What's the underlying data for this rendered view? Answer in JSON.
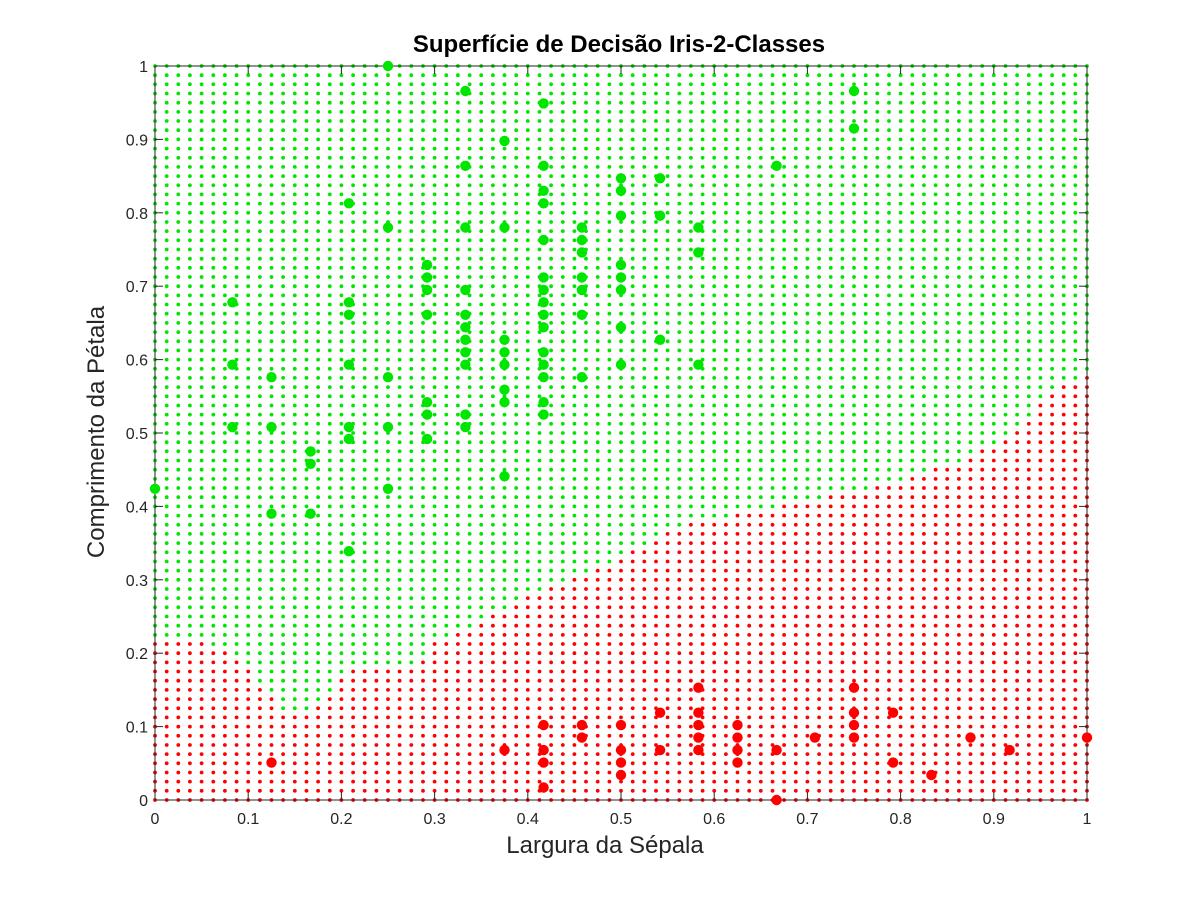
{
  "chart_data": {
    "type": "scatter",
    "title": "Superfície de Decisão Iris-2-Classes",
    "xlabel": "Largura da Sépala",
    "ylabel": "Comprimento da Pétala",
    "xlim": [
      0,
      1
    ],
    "ylim": [
      0,
      1
    ],
    "xticks": [
      "0",
      "0.1",
      "0.2",
      "0.3",
      "0.4",
      "0.5",
      "0.6",
      "0.7",
      "0.8",
      "0.9",
      "1"
    ],
    "yticks": [
      "0",
      "0.1",
      "0.2",
      "0.3",
      "0.4",
      "0.5",
      "0.6",
      "0.7",
      "0.8",
      "0.9",
      "1"
    ],
    "grid": false,
    "legend": "none",
    "colors": {
      "green_class": "#00e600",
      "red_class": "#ff0000"
    },
    "decision_surface": {
      "grid_step": 0.0125,
      "boundary": [
        [
          0.0,
          0.215
        ],
        [
          0.05,
          0.215
        ],
        [
          0.08,
          0.2
        ],
        [
          0.1,
          0.18
        ],
        [
          0.12,
          0.15
        ],
        [
          0.14,
          0.12
        ],
        [
          0.16,
          0.12
        ],
        [
          0.19,
          0.15
        ],
        [
          0.21,
          0.175
        ],
        [
          0.25,
          0.18
        ],
        [
          0.28,
          0.185
        ],
        [
          0.3,
          0.22
        ],
        [
          0.33,
          0.23
        ],
        [
          0.36,
          0.25
        ],
        [
          0.39,
          0.27
        ],
        [
          0.43,
          0.29
        ],
        [
          0.46,
          0.31
        ],
        [
          0.5,
          0.33
        ],
        [
          0.54,
          0.36
        ],
        [
          0.58,
          0.38
        ],
        [
          0.63,
          0.39
        ],
        [
          0.67,
          0.4
        ],
        [
          0.7,
          0.41
        ],
        [
          0.75,
          0.42
        ],
        [
          0.8,
          0.435
        ],
        [
          0.85,
          0.455
        ],
        [
          0.88,
          0.47
        ],
        [
          0.91,
          0.49
        ],
        [
          0.93,
          0.515
        ],
        [
          0.95,
          0.54
        ],
        [
          0.97,
          0.56
        ],
        [
          1.0,
          0.58
        ]
      ],
      "above": "green",
      "below": "red"
    },
    "series": [
      {
        "class": "green",
        "points": [
          [
            0.0,
            0.424
          ],
          [
            0.25,
            1.0
          ],
          [
            0.333,
            0.966
          ],
          [
            0.417,
            0.949
          ],
          [
            0.75,
            0.966
          ],
          [
            0.75,
            0.915
          ],
          [
            0.375,
            0.898
          ],
          [
            0.333,
            0.864
          ],
          [
            0.417,
            0.864
          ],
          [
            0.5,
            0.847
          ],
          [
            0.5,
            0.83
          ],
          [
            0.542,
            0.847
          ],
          [
            0.667,
            0.864
          ],
          [
            0.417,
            0.83
          ],
          [
            0.208,
            0.813
          ],
          [
            0.417,
            0.813
          ],
          [
            0.5,
            0.796
          ],
          [
            0.542,
            0.796
          ],
          [
            0.25,
            0.78
          ],
          [
            0.333,
            0.78
          ],
          [
            0.375,
            0.78
          ],
          [
            0.458,
            0.78
          ],
          [
            0.583,
            0.78
          ],
          [
            0.417,
            0.763
          ],
          [
            0.458,
            0.763
          ],
          [
            0.583,
            0.746
          ],
          [
            0.458,
            0.746
          ],
          [
            0.292,
            0.729
          ],
          [
            0.5,
            0.729
          ],
          [
            0.292,
            0.712
          ],
          [
            0.417,
            0.712
          ],
          [
            0.458,
            0.712
          ],
          [
            0.5,
            0.712
          ],
          [
            0.417,
            0.695
          ],
          [
            0.292,
            0.695
          ],
          [
            0.333,
            0.695
          ],
          [
            0.458,
            0.695
          ],
          [
            0.5,
            0.695
          ],
          [
            0.417,
            0.678
          ],
          [
            0.083,
            0.678
          ],
          [
            0.208,
            0.678
          ],
          [
            0.417,
            0.661
          ],
          [
            0.208,
            0.661
          ],
          [
            0.292,
            0.661
          ],
          [
            0.333,
            0.661
          ],
          [
            0.458,
            0.661
          ],
          [
            0.417,
            0.644
          ],
          [
            0.333,
            0.644
          ],
          [
            0.5,
            0.644
          ],
          [
            0.542,
            0.627
          ],
          [
            0.333,
            0.627
          ],
          [
            0.375,
            0.627
          ],
          [
            0.417,
            0.61
          ],
          [
            0.333,
            0.61
          ],
          [
            0.375,
            0.61
          ],
          [
            0.083,
            0.593
          ],
          [
            0.208,
            0.593
          ],
          [
            0.333,
            0.593
          ],
          [
            0.375,
            0.593
          ],
          [
            0.417,
            0.593
          ],
          [
            0.5,
            0.593
          ],
          [
            0.583,
            0.593
          ],
          [
            0.125,
            0.576
          ],
          [
            0.25,
            0.576
          ],
          [
            0.417,
            0.576
          ],
          [
            0.458,
            0.576
          ],
          [
            0.375,
            0.559
          ],
          [
            0.292,
            0.542
          ],
          [
            0.375,
            0.542
          ],
          [
            0.417,
            0.542
          ],
          [
            0.292,
            0.525
          ],
          [
            0.333,
            0.525
          ],
          [
            0.417,
            0.525
          ],
          [
            0.083,
            0.508
          ],
          [
            0.125,
            0.508
          ],
          [
            0.208,
            0.508
          ],
          [
            0.25,
            0.508
          ],
          [
            0.333,
            0.508
          ],
          [
            0.208,
            0.492
          ],
          [
            0.292,
            0.492
          ],
          [
            0.167,
            0.475
          ],
          [
            0.167,
            0.458
          ],
          [
            0.375,
            0.441
          ],
          [
            0.25,
            0.424
          ],
          [
            0.125,
            0.39
          ],
          [
            0.167,
            0.39
          ],
          [
            0.208,
            0.339
          ]
        ]
      },
      {
        "class": "red",
        "points": [
          [
            0.583,
            0.153
          ],
          [
            0.75,
            0.153
          ],
          [
            0.542,
            0.119
          ],
          [
            0.583,
            0.119
          ],
          [
            0.75,
            0.119
          ],
          [
            0.792,
            0.119
          ],
          [
            0.417,
            0.102
          ],
          [
            0.458,
            0.102
          ],
          [
            0.5,
            0.102
          ],
          [
            0.583,
            0.102
          ],
          [
            0.625,
            0.102
          ],
          [
            0.75,
            0.102
          ],
          [
            0.458,
            0.085
          ],
          [
            0.583,
            0.085
          ],
          [
            0.625,
            0.085
          ],
          [
            0.708,
            0.085
          ],
          [
            0.75,
            0.085
          ],
          [
            0.875,
            0.085
          ],
          [
            1.0,
            0.085
          ],
          [
            0.375,
            0.068
          ],
          [
            0.417,
            0.068
          ],
          [
            0.5,
            0.068
          ],
          [
            0.542,
            0.068
          ],
          [
            0.583,
            0.068
          ],
          [
            0.625,
            0.068
          ],
          [
            0.667,
            0.068
          ],
          [
            0.917,
            0.068
          ],
          [
            0.125,
            0.051
          ],
          [
            0.417,
            0.051
          ],
          [
            0.5,
            0.051
          ],
          [
            0.625,
            0.051
          ],
          [
            0.792,
            0.051
          ],
          [
            0.5,
            0.034
          ],
          [
            0.833,
            0.034
          ],
          [
            0.417,
            0.017
          ],
          [
            0.667,
            0.0
          ]
        ]
      }
    ]
  }
}
